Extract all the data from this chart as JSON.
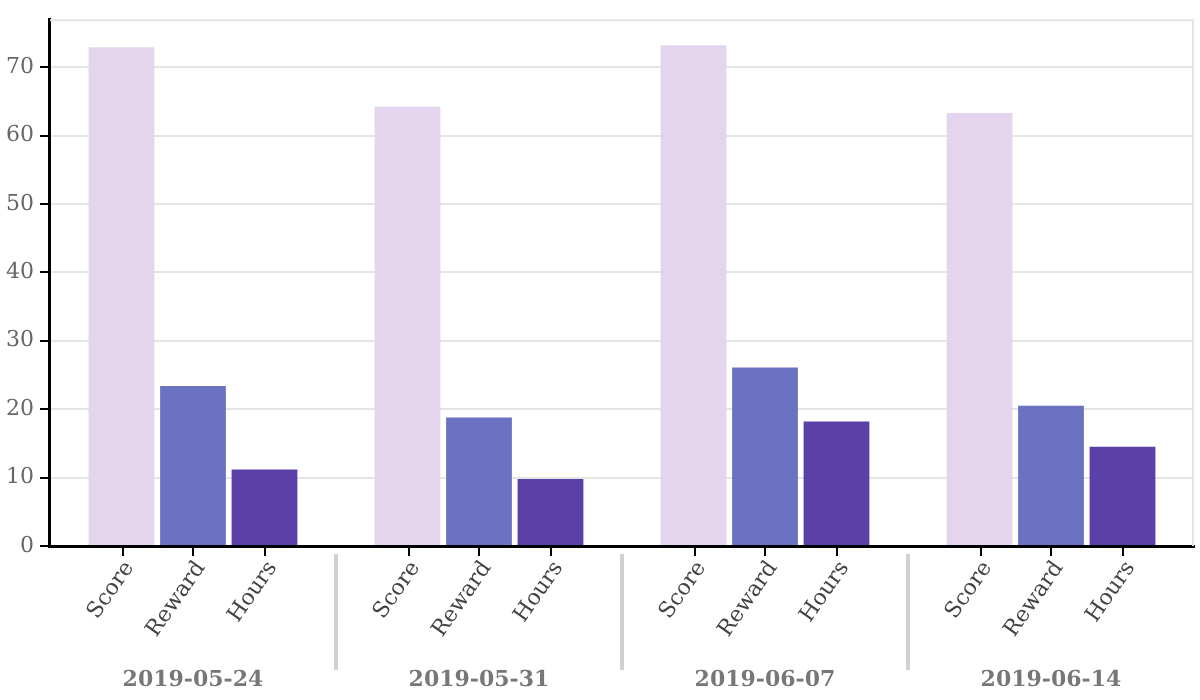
{
  "chart_data": {
    "type": "bar",
    "categories": [
      "2019-05-24",
      "2019-05-31",
      "2019-06-07",
      "2019-06-14"
    ],
    "series": [
      {
        "name": "Score",
        "color": "#e4d4ee",
        "values": [
          72.9,
          64.2,
          73.2,
          63.3
        ]
      },
      {
        "name": "Reward",
        "color": "#6c72c2",
        "values": [
          23.4,
          18.8,
          26.1,
          20.5
        ]
      },
      {
        "name": "Hours",
        "color": "#5b40a8",
        "values": [
          11.2,
          9.8,
          18.2,
          14.5
        ]
      }
    ],
    "ylim": [
      0,
      77
    ],
    "yticks": [
      0,
      10,
      20,
      30,
      40,
      50,
      60,
      70
    ],
    "grid": "y",
    "legend": false
  }
}
